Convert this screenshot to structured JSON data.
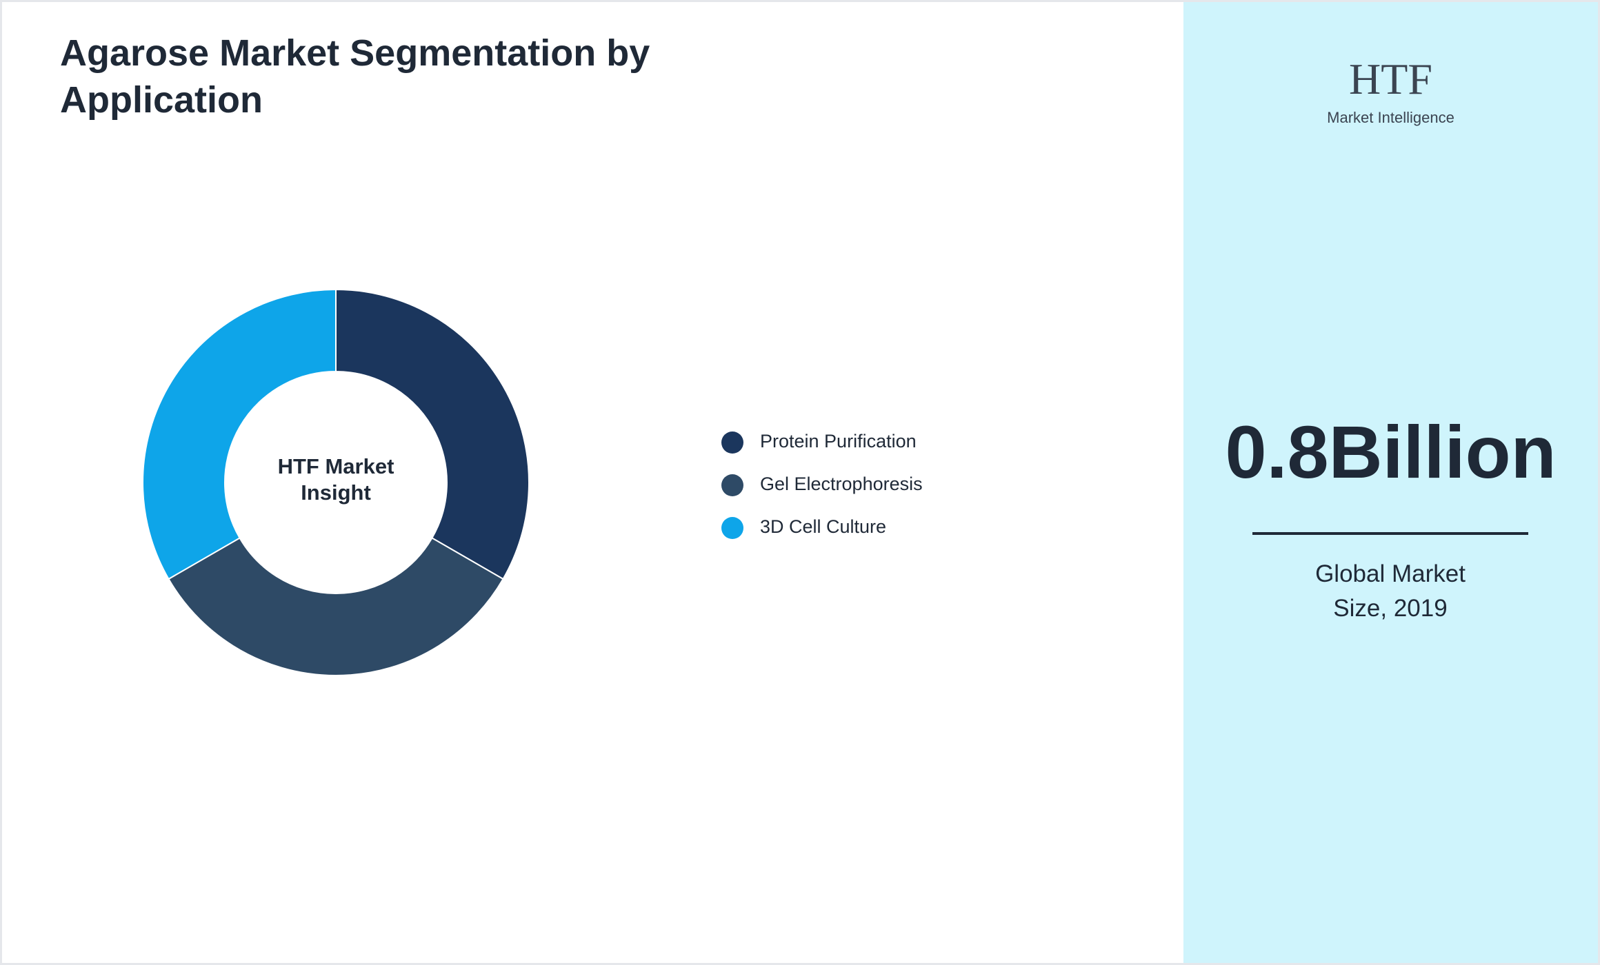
{
  "chart_data": {
    "type": "donut",
    "title": "Agarose Market Segmentation by Application",
    "center_label": "HTF Market Insight",
    "categories": [
      "Protein Purification",
      "Gel Electrophoresis",
      "3D Cell Culture"
    ],
    "values": [
      33.3,
      33.3,
      33.3
    ],
    "colors": [
      "#1b365d",
      "#2e4a66",
      "#0ea5e9"
    ]
  },
  "panel": {
    "logo": "HTF",
    "logo_sub": "Market Intelligence",
    "value": "0.8Billion",
    "caption": "Global Market Size, 2019"
  }
}
